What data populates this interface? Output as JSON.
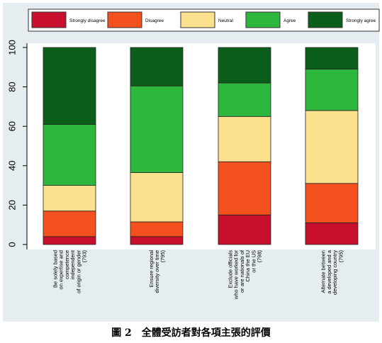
{
  "caption": "圖 2　全體受訪者對各項主張的評價",
  "chart_data": {
    "type": "bar",
    "stacked": true,
    "categories": [
      [
        "Be solely based",
        "on expertise and",
        "competence",
        "independent",
        "of origin or gender",
        "(793)"
      ],
      [
        "Ensure regional",
        "diversity over time",
        "(795)"
      ],
      [
        "Exclude officials",
        "who have worked for",
        "or are nationals of",
        "China the EU",
        "or the US",
        "(798)"
      ],
      [
        "Alternate between",
        "a developed and a",
        "developing country",
        "(795)"
      ]
    ],
    "series": [
      {
        "name": "Strongly disagree",
        "color": "#c8102e",
        "values": [
          4,
          4,
          15,
          11
        ]
      },
      {
        "name": "Disagree",
        "color": "#f4511e",
        "values": [
          13,
          7.5,
          27,
          20
        ]
      },
      {
        "name": "Neutral",
        "color": "#fbe08d",
        "values": [
          13,
          25,
          23,
          37
        ]
      },
      {
        "name": "Agree",
        "color": "#2db83d",
        "values": [
          31,
          44,
          17,
          21
        ]
      },
      {
        "name": "Strongly agree",
        "color": "#0b5e1a",
        "values": [
          39,
          19.5,
          18,
          11
        ]
      }
    ],
    "ylim": [
      0,
      100
    ],
    "yticks": [
      0,
      20,
      40,
      60,
      80,
      100
    ],
    "legend_position": "top",
    "grid": false,
    "plot_background": "#e6edf0",
    "figure_background": "#ffffff"
  }
}
